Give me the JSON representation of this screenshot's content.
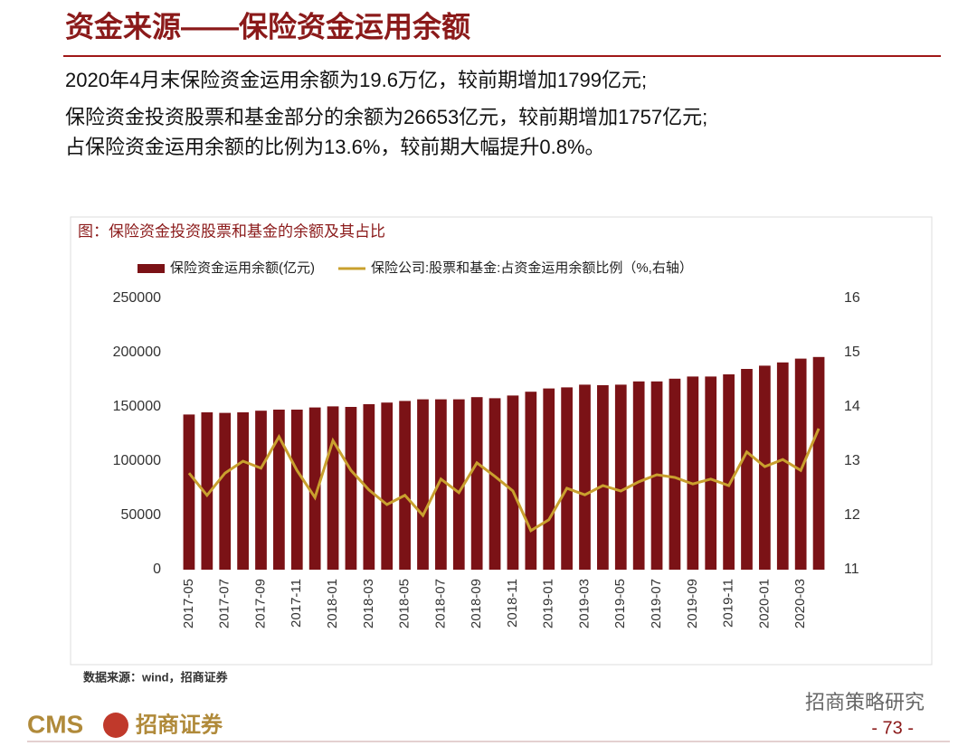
{
  "header": {
    "title": "资金来源——保险资金运用余额"
  },
  "paragraphs": [
    "2020年4月末保险资金运用余额为19.6万亿，较前期增加1799亿元;",
    "保险资金投资股票和基金部分的余额为26653亿元，较前期增加1757亿元;",
    "占保险资金运用余额的比例为13.6%，较前期大幅提升0.8%。"
  ],
  "chart_data": {
    "type": "bar-line",
    "title": "图：保险资金投资股票和基金的余额及其占比",
    "categories": [
      "2017-05",
      null,
      "2017-07",
      null,
      "2017-09",
      null,
      "2017-11",
      null,
      "2018-01",
      null,
      "2018-03",
      null,
      "2018-05",
      null,
      "2018-07",
      null,
      "2018-09",
      null,
      "2018-11",
      null,
      "2019-01",
      null,
      "2019-03",
      null,
      "2019-05",
      null,
      "2019-07",
      null,
      "2019-09",
      null,
      "2019-11",
      null,
      "2020-01",
      null,
      "2020-03",
      null
    ],
    "series": [
      {
        "name": "保险资金运用余额(亿元)",
        "type": "bar",
        "color": "#7b1216",
        "values": [
          143000,
          145000,
          144500,
          145000,
          146500,
          147500,
          147500,
          149500,
          150500,
          150000,
          152500,
          154000,
          155500,
          157000,
          157000,
          157000,
          159000,
          158000,
          160500,
          164000,
          167000,
          168000,
          170500,
          170000,
          170500,
          173500,
          173500,
          176000,
          178000,
          178000,
          180000,
          185000,
          188000,
          191000,
          194500,
          196000
        ]
      },
      {
        "name": "保险公司:股票和基金:占资金运用余额比例（%,右轴）",
        "type": "line",
        "axis": "y2",
        "color": "#c9a02e",
        "values": [
          12.78,
          12.37,
          12.78,
          13.0,
          12.87,
          13.45,
          12.83,
          12.33,
          13.38,
          12.83,
          12.47,
          12.2,
          12.37,
          12.0,
          12.67,
          12.42,
          12.97,
          12.72,
          12.45,
          11.72,
          11.92,
          12.5,
          12.38,
          12.55,
          12.45,
          12.62,
          12.75,
          12.7,
          12.58,
          12.67,
          12.55,
          13.17,
          12.9,
          13.03,
          12.83,
          13.6
        ]
      }
    ],
    "ylim": [
      0,
      250000
    ],
    "yticks": [
      0,
      50000,
      100000,
      150000,
      200000,
      250000
    ],
    "y2lim": [
      11,
      16
    ],
    "y2ticks": [
      11,
      12,
      13,
      14,
      15,
      16
    ],
    "source": "数据来源：wind，招商证券"
  },
  "footer": {
    "logo": "CMS",
    "company": "招商证券",
    "watermark": "招商策略研究",
    "page": "- 73 -"
  }
}
